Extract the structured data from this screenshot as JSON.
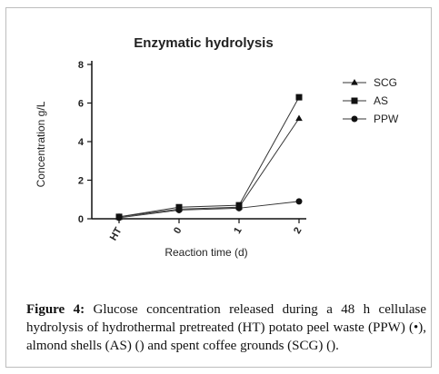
{
  "chart_data": {
    "type": "line",
    "title": "Enzymatic hydrolysis",
    "xlabel": "Reaction time (d)",
    "ylabel": "Concentration g/L",
    "categories": [
      "HT",
      "0",
      "1",
      "2"
    ],
    "ylim": [
      0,
      8
    ],
    "yticks": [
      0,
      2,
      4,
      6,
      8
    ],
    "grid": false,
    "legend_position": "top-right",
    "series": [
      {
        "name": "SCG",
        "marker": "triangle",
        "values": [
          0.1,
          0.5,
          0.6,
          5.2
        ]
      },
      {
        "name": "AS",
        "marker": "square",
        "values": [
          0.1,
          0.6,
          0.7,
          6.3
        ]
      },
      {
        "name": "PPW",
        "marker": "circle",
        "values": [
          0.05,
          0.45,
          0.55,
          0.9
        ]
      }
    ]
  },
  "caption": {
    "label": "Figure 4:",
    "text": " Glucose concentration released during a 48 h cellulase hydrolysis of hydrothermal pretreated (HT) potato peel waste (PPW) (•), almond shells (AS) () and spent coffee grounds (SCG) ()."
  },
  "colors": {
    "line": "#333333",
    "marker": "#111111",
    "axis": "#111111"
  }
}
